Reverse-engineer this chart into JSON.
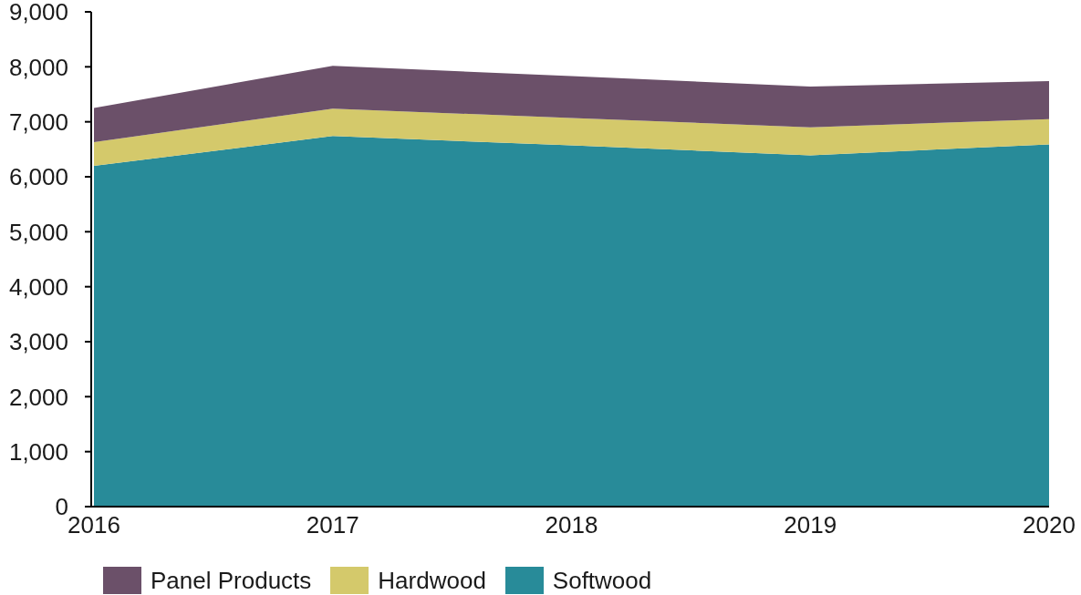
{
  "chart_data": {
    "type": "area",
    "stacked": true,
    "x": [
      2016,
      2017,
      2018,
      2019,
      2020
    ],
    "xlim": [
      2016,
      2020
    ],
    "xticks": [
      2016,
      2017,
      2018,
      2019,
      2020
    ],
    "ylim": [
      0,
      9000
    ],
    "yticks": [
      0,
      {
        "value": 1000,
        "label": "1,000"
      },
      {
        "value": 2000,
        "label": "2,000"
      },
      {
        "value": 3000,
        "label": "3,000"
      },
      {
        "value": 4000,
        "label": "4,000"
      },
      {
        "value": 5000,
        "label": "5,000"
      },
      {
        "value": 6000,
        "label": "6,000"
      },
      {
        "value": 7000,
        "label": "7,000"
      },
      {
        "value": 8000,
        "label": "8,000"
      },
      {
        "value": 9000,
        "label": "9,000"
      }
    ],
    "series": [
      {
        "name": "Softwood",
        "color": "#288b99",
        "values": [
          6200,
          6740,
          6570,
          6390,
          6590
        ]
      },
      {
        "name": "Hardwood",
        "color": "#d4c96b",
        "values": [
          430,
          500,
          500,
          510,
          460
        ]
      },
      {
        "name": "Panel Products",
        "color": "#6b5069",
        "values": [
          620,
          780,
          760,
          740,
          690
        ]
      }
    ],
    "legend": "bottom"
  }
}
